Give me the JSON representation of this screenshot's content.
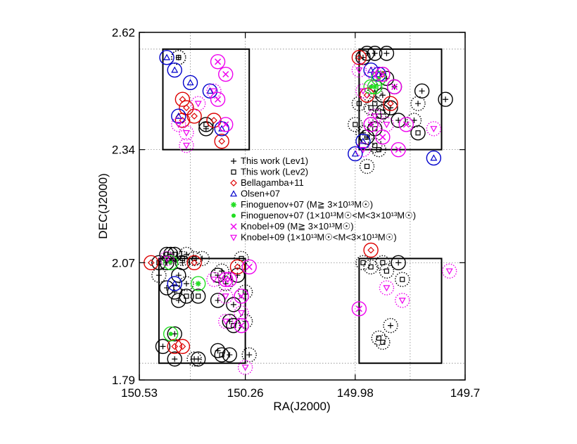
{
  "chart_data": {
    "type": "scatter",
    "xlabel": "RA(J2000)",
    "ylabel": "DEC(J2000)",
    "xlim": [
      150.53,
      149.7
    ],
    "ylim": [
      1.79,
      2.62
    ],
    "x_ticks": [
      "150.53",
      "150.26",
      "149.98",
      "149.7"
    ],
    "y_ticks": [
      "1.79",
      "2.07",
      "2.34",
      "2.62"
    ],
    "grid": true,
    "x_grid": [
      150.4,
      150.26,
      149.98,
      149.84
    ],
    "y_grid": [
      1.83,
      2.07,
      2.34,
      2.58
    ],
    "fields": [
      {
        "ra_min": 150.25,
        "ra_max": 150.47,
        "dec_min": 2.34,
        "dec_max": 2.58
      },
      {
        "ra_min": 149.76,
        "ra_max": 149.97,
        "dec_min": 2.34,
        "dec_max": 2.58
      },
      {
        "ra_min": 150.26,
        "ra_max": 150.48,
        "dec_min": 1.83,
        "dec_max": 2.08
      },
      {
        "ra_min": 149.76,
        "ra_max": 149.97,
        "dec_min": 1.83,
        "dec_max": 2.08
      }
    ],
    "legend": {
      "placement": "center",
      "entries": [
        {
          "marker": "plus",
          "color": "#000000",
          "label": "This work (Lev1)"
        },
        {
          "marker": "square",
          "color": "#000000",
          "label": "This work (Lev2)"
        },
        {
          "marker": "diamond",
          "color": "#dd0000",
          "label": "Bellagamba+11"
        },
        {
          "marker": "triangle",
          "color": "#0000cc",
          "label": "Olsen+07"
        },
        {
          "marker": "star",
          "color": "#22dd22",
          "label": "Finoguenov+07 (M≧ 3×10¹³M☉)"
        },
        {
          "marker": "dot",
          "color": "#22dd22",
          "label": "Finoguenov+07 (1×10¹³M☉<M<3×10¹³M☉)"
        },
        {
          "marker": "cross",
          "color": "#ee00ee",
          "label": "Knobel+09 (M≧ 3×10¹³M☉)"
        },
        {
          "marker": "tri-down",
          "color": "#ee00ee",
          "label": "Knobel+09 (1×10¹³M☉<M<3×10¹³M☉)"
        }
      ]
    },
    "series": [
      {
        "marker": "plus",
        "color": "#000000",
        "circle": "solid",
        "points": [
          [
            150.36,
            2.39
          ],
          [
            149.81,
            2.48
          ],
          [
            149.9,
            2.51
          ],
          [
            149.88,
            2.49
          ],
          [
            149.9,
            2.57
          ],
          [
            149.93,
            2.57
          ],
          [
            149.95,
            2.57
          ],
          [
            149.96,
            2.56
          ],
          [
            149.91,
            2.47
          ],
          [
            149.89,
            2.44
          ],
          [
            149.75,
            2.46
          ],
          [
            149.87,
            2.41
          ],
          [
            150.46,
            2.07
          ],
          [
            150.45,
            2.09
          ],
          [
            150.42,
            2.07
          ],
          [
            150.43,
            2.04
          ],
          [
            150.46,
            2.01
          ],
          [
            150.44,
            2.0
          ],
          [
            150.43,
            1.98
          ],
          [
            150.44,
            1.9
          ],
          [
            150.47,
            1.87
          ],
          [
            150.44,
            1.84
          ],
          [
            150.38,
            1.84
          ],
          [
            150.33,
            1.86
          ],
          [
            150.3,
            1.85
          ],
          [
            150.3,
            1.93
          ],
          [
            150.33,
            1.98
          ],
          [
            150.29,
            1.97
          ],
          [
            150.28,
            2.04
          ],
          [
            150.33,
            2.04
          ],
          [
            149.87,
            2.07
          ]
        ]
      },
      {
        "marker": "plus",
        "color": "#000000",
        "circle": "dotted",
        "points": [
          [
            150.43,
            2.56
          ],
          [
            149.93,
            2.48
          ],
          [
            149.82,
            2.45
          ],
          [
            149.83,
            2.41
          ],
          [
            149.94,
            2.4
          ],
          [
            149.96,
            2.38
          ],
          [
            149.95,
            2.37
          ],
          [
            150.48,
            2.04
          ],
          [
            150.41,
            2.09
          ],
          [
            150.37,
            2.08
          ],
          [
            150.32,
            2.05
          ],
          [
            150.31,
            2.02
          ],
          [
            150.41,
            2.02
          ],
          [
            150.39,
            1.84
          ],
          [
            150.25,
            1.85
          ],
          [
            150.26,
            1.93
          ],
          [
            149.89,
            1.92
          ]
        ]
      },
      {
        "marker": "square",
        "color": "#000000",
        "circle": "solid",
        "points": [
          [
            150.36,
            2.4
          ],
          [
            149.91,
            2.43
          ],
          [
            149.82,
            2.38
          ],
          [
            149.93,
            2.39
          ],
          [
            149.95,
            2.37
          ],
          [
            150.46,
            2.09
          ],
          [
            150.44,
            2.09
          ],
          [
            150.48,
            2.07
          ],
          [
            150.29,
            1.92
          ],
          [
            150.32,
            1.85
          ],
          [
            150.38,
            1.99
          ],
          [
            150.41,
            1.99
          ]
        ]
      },
      {
        "marker": "square",
        "color": "#000000",
        "circle": "dotted",
        "points": [
          [
            150.43,
            2.56
          ],
          [
            149.94,
            2.44
          ],
          [
            149.93,
            2.45
          ],
          [
            149.92,
            2.42
          ],
          [
            149.97,
            2.45
          ],
          [
            149.98,
            2.4
          ],
          [
            149.93,
            2.35
          ],
          [
            149.92,
            2.34
          ],
          [
            149.95,
            2.3
          ],
          [
            150.42,
            2.08
          ],
          [
            150.39,
            2.08
          ],
          [
            150.27,
            2.08
          ],
          [
            150.26,
            2.0
          ],
          [
            149.96,
            2.07
          ],
          [
            149.94,
            2.06
          ],
          [
            149.91,
            2.07
          ],
          [
            149.9,
            2.05
          ],
          [
            149.86,
            2.03
          ],
          [
            149.92,
            1.89
          ],
          [
            149.91,
            1.88
          ]
        ]
      },
      {
        "marker": "diamond",
        "color": "#dd0000",
        "circle": "solid",
        "points": [
          [
            150.42,
            2.46
          ],
          [
            150.41,
            2.44
          ],
          [
            150.42,
            2.41
          ],
          [
            150.39,
            2.42
          ],
          [
            150.34,
            2.41
          ],
          [
            150.32,
            2.36
          ],
          [
            149.97,
            2.56
          ],
          [
            149.91,
            2.52
          ],
          [
            149.95,
            2.47
          ],
          [
            149.89,
            2.45
          ],
          [
            150.5,
            2.07
          ],
          [
            150.39,
            2.07
          ],
          [
            150.28,
            2.06
          ],
          [
            150.44,
            1.87
          ],
          [
            150.42,
            1.87
          ],
          [
            149.94,
            2.1
          ]
        ]
      },
      {
        "marker": "triangle",
        "color": "#0000cc",
        "circle": "solid",
        "points": [
          [
            150.46,
            2.56
          ],
          [
            150.44,
            2.53
          ],
          [
            150.4,
            2.5
          ],
          [
            150.43,
            2.42
          ],
          [
            150.35,
            2.48
          ],
          [
            150.32,
            2.39
          ],
          [
            149.92,
            2.52
          ],
          [
            149.94,
            2.53
          ],
          [
            149.78,
            2.32
          ],
          [
            149.96,
            2.36
          ],
          [
            149.98,
            2.33
          ],
          [
            150.44,
            2.02
          ]
        ]
      },
      {
        "marker": "star",
        "color": "#22dd22",
        "circle": "solid",
        "points": [
          [
            149.93,
            2.49
          ],
          [
            150.38,
            2.02
          ]
        ]
      },
      {
        "marker": "dot",
        "color": "#22dd22",
        "circle": "solid",
        "points": [
          [
            150.45,
            2.07
          ],
          [
            150.45,
            1.9
          ],
          [
            149.92,
            2.51
          ],
          [
            149.94,
            2.49
          ]
        ]
      },
      {
        "marker": "cross",
        "color": "#ee00ee",
        "circle": "solid",
        "points": [
          [
            150.33,
            2.55
          ],
          [
            150.31,
            2.52
          ],
          [
            150.33,
            2.46
          ],
          [
            150.31,
            2.4
          ],
          [
            149.85,
            2.4
          ],
          [
            150.25,
            2.06
          ],
          [
            150.3,
            2.03
          ],
          [
            150.27,
            1.99
          ],
          [
            149.91,
            2.52
          ],
          [
            149.88,
            2.49
          ],
          [
            149.94,
            2.4
          ],
          [
            149.91,
            2.37
          ],
          [
            149.87,
            2.34
          ],
          [
            150.31,
            2.03
          ],
          [
            150.27,
            1.92
          ],
          [
            149.97,
            1.96
          ]
        ]
      },
      {
        "marker": "tri-down",
        "color": "#ee00ee",
        "circle": "dotted",
        "points": [
          [
            150.38,
            2.45
          ],
          [
            150.43,
            2.4
          ],
          [
            150.41,
            2.38
          ],
          [
            150.41,
            2.35
          ],
          [
            150.34,
            2.48
          ],
          [
            149.97,
            2.53
          ],
          [
            149.93,
            2.52
          ],
          [
            149.96,
            2.48
          ],
          [
            149.93,
            2.42
          ],
          [
            149.9,
            2.4
          ],
          [
            149.78,
            2.39
          ],
          [
            149.96,
            2.34
          ],
          [
            150.46,
            2.08
          ],
          [
            150.34,
            2.03
          ],
          [
            150.31,
            1.99
          ],
          [
            150.27,
            1.95
          ],
          [
            150.26,
            1.82
          ],
          [
            150.31,
            1.93
          ],
          [
            149.9,
            2.01
          ],
          [
            149.86,
            1.98
          ],
          [
            149.74,
            2.05
          ]
        ]
      }
    ]
  }
}
